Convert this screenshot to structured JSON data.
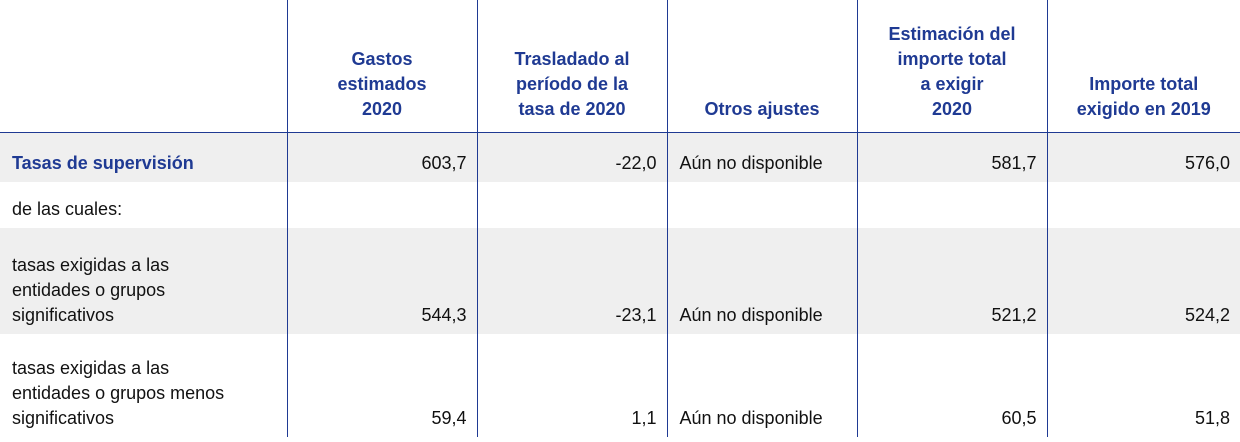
{
  "header": {
    "columns": [
      [
        "Gastos",
        "estimados",
        "2020"
      ],
      [
        "Trasladado al",
        "período de la",
        "tasa de 2020"
      ],
      [
        "Otros ajustes"
      ],
      [
        "Estimación del",
        "importe total",
        "a exigir",
        "2020"
      ],
      [
        "Importe total",
        "exigido en 2019"
      ]
    ]
  },
  "rows": [
    {
      "label": [
        "Tasas de supervisión"
      ],
      "cells": [
        "603,7",
        "-22,0",
        "Aún no disponible",
        "581,7",
        "576,0"
      ]
    },
    {
      "label": [
        "de las cuales:"
      ],
      "cells": []
    },
    {
      "label": [
        "tasas exigidas a las",
        "entidades o grupos",
        "significativos"
      ],
      "cells": [
        "544,3",
        "-23,1",
        "Aún no disponible",
        "521,2",
        "524,2"
      ]
    },
    {
      "label": [
        "tasas exigidas a las",
        "entidades o grupos menos",
        "significativos"
      ],
      "cells": [
        "59,4",
        "1,1",
        "Aún no disponible",
        "60,5",
        "51,8"
      ]
    }
  ]
}
